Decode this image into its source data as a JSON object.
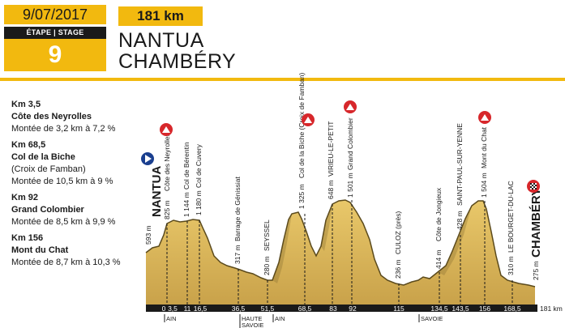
{
  "header": {
    "date": "9/07/2017",
    "stage_label": "ÉTAPE | STAGE",
    "stage_number": "9",
    "distance": "181 km",
    "start_city": "NANTUA",
    "end_city": "CHAMBÉRY"
  },
  "climbs": [
    {
      "km": "Km 3,5",
      "name": "Côte des Neyrolles",
      "extra": "",
      "ascent": "Montée de 3,2 km à 7,2 %"
    },
    {
      "km": "Km 68,5",
      "name": "Col de la Biche",
      "extra": "(Croix de Famban)",
      "ascent": "Montée de 10,5 km à 9 %"
    },
    {
      "km": "Km 92",
      "name": "Grand Colombier",
      "extra": "",
      "ascent": "Montée de 8,5 km à 9,9 %"
    },
    {
      "km": "Km 156",
      "name": "Mont du Chat",
      "extra": "",
      "ascent": "Montée de 8,7 km à 10,3 %"
    }
  ],
  "profile": {
    "total_label": "181 km",
    "start_label": "NANTUA",
    "end_label": "CHAMBÉRY",
    "points": [
      {
        "km": 0,
        "alt": "593 m",
        "name": "NANTUA"
      },
      {
        "km": 3.5,
        "alt": "825 m",
        "name": "Côte des Neyrolles",
        "tick": "3,5"
      },
      {
        "km": 11,
        "alt": "1 144 m",
        "name": "Col de Bérentin",
        "tick": "11"
      },
      {
        "km": 16.5,
        "alt": "1 180 m",
        "name": "Col de Cuvery",
        "tick": "16,5"
      },
      {
        "km": 36.5,
        "alt": "317 m",
        "name": "Barrage de Génissiat",
        "tick": "36,5"
      },
      {
        "km": 51.5,
        "alt": "280 m",
        "name": "SEYSSEL",
        "tick": "51,5"
      },
      {
        "km": 68.5,
        "alt": "1 325 m",
        "name": "Col de la Biche (Croix de Famban)",
        "tick": "68,5"
      },
      {
        "km": 83,
        "alt": "648 m",
        "name": "VIRIEU-LE-PETIT",
        "tick": "83"
      },
      {
        "km": 92,
        "alt": "1 501 m",
        "name": "Grand Colombier",
        "tick": "92"
      },
      {
        "km": 115,
        "alt": "236 m",
        "name": "CULOZ (près)",
        "tick": "115"
      },
      {
        "km": 134.5,
        "alt": "414 m",
        "name": "Côte de Jongieux",
        "tick": "134,5"
      },
      {
        "km": 143.5,
        "alt": "428 m",
        "name": "SAINT-PAUL-SUR-YENNE",
        "tick": "143,5"
      },
      {
        "km": 156,
        "alt": "1 504 m",
        "name": "Mont du Chat",
        "tick": "156"
      },
      {
        "km": 168.5,
        "alt": "310 m",
        "name": "LE BOURGET-DU-LAC",
        "tick": "168,5"
      },
      {
        "km": 181,
        "alt": "275 m",
        "name": "CHAMBÉRY"
      }
    ],
    "tick_zero": "0",
    "departments": [
      "AIN",
      "HAUTE SAVOIE",
      "AIN",
      "SAVOIE"
    ]
  },
  "colors": {
    "accent": "#f2b90f",
    "climb_badge": "#d7272b",
    "start_badge": "#1a3f8f",
    "axis": "#1a1a1a"
  }
}
